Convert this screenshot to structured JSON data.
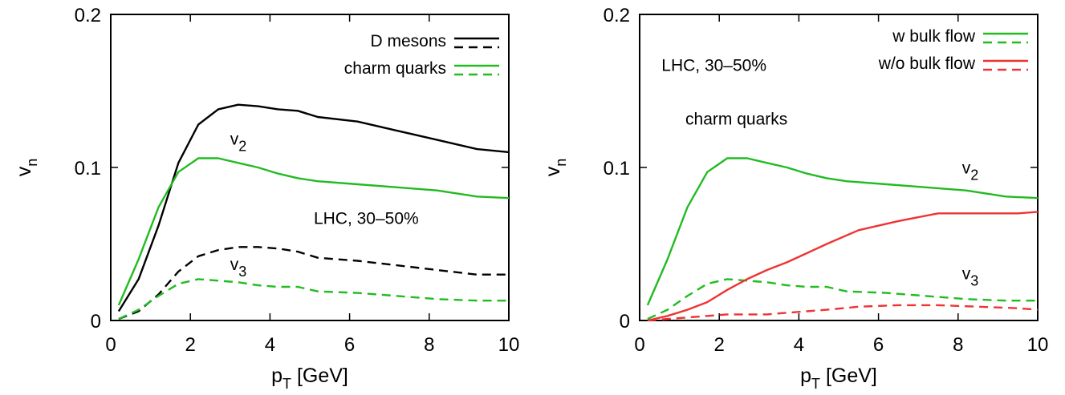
{
  "chart_data": [
    {
      "type": "line",
      "xlim": [
        0,
        10
      ],
      "ylim": [
        0,
        0.2
      ],
      "xticks": [
        0,
        2,
        4,
        6,
        8,
        10
      ],
      "yticks": [
        0,
        0.1,
        0.2
      ],
      "xtick_labels": [
        "0",
        "2",
        "4",
        "6",
        "8",
        "10"
      ],
      "ytick_labels": [
        "0",
        "0.1",
        "0.2"
      ],
      "xlabel": {
        "main": "p",
        "sub": "T",
        "rest": " [GeV]"
      },
      "ylabel": {
        "main": "v",
        "sub": "n"
      },
      "legend_position": "top-right",
      "legend": [
        {
          "label": "D mesons",
          "color": "#000000"
        },
        {
          "label": "charm quarks",
          "color": "#22bb22"
        }
      ],
      "annotations": [
        {
          "main": "v",
          "sub": "2",
          "x": 3.0,
          "y": 0.115
        },
        {
          "main": "LHC, 30–50%",
          "sub": "",
          "x": 5.1,
          "y": 0.063
        },
        {
          "main": "v",
          "sub": "3",
          "x": 3.0,
          "y": 0.033
        }
      ],
      "series": [
        {
          "key": "d-mesons-v2",
          "color": "#000000",
          "dashed": false,
          "x": [
            0.2,
            0.7,
            1.2,
            1.7,
            2.2,
            2.7,
            3.2,
            3.7,
            4.2,
            4.7,
            5.2,
            6.2,
            7.2,
            8.2,
            9.2,
            10.0
          ],
          "y": [
            0.006,
            0.027,
            0.062,
            0.103,
            0.128,
            0.138,
            0.141,
            0.14,
            0.138,
            0.137,
            0.133,
            0.13,
            0.124,
            0.118,
            0.112,
            0.11
          ]
        },
        {
          "key": "d-mesons-v3",
          "color": "#000000",
          "dashed": true,
          "x": [
            0.2,
            0.7,
            1.2,
            1.7,
            2.2,
            2.7,
            3.2,
            3.7,
            4.2,
            4.7,
            5.2,
            6.2,
            7.2,
            8.2,
            9.2,
            10.0
          ],
          "y": [
            0.001,
            0.006,
            0.017,
            0.032,
            0.042,
            0.046,
            0.048,
            0.048,
            0.047,
            0.045,
            0.041,
            0.039,
            0.036,
            0.033,
            0.03,
            0.03
          ]
        },
        {
          "key": "charm-quarks-v2",
          "color": "#22bb22",
          "dashed": false,
          "x": [
            0.2,
            0.7,
            1.2,
            1.7,
            2.2,
            2.7,
            3.2,
            3.7,
            4.2,
            4.7,
            5.2,
            6.2,
            7.2,
            8.2,
            9.2,
            10.0
          ],
          "y": [
            0.01,
            0.04,
            0.074,
            0.097,
            0.106,
            0.106,
            0.103,
            0.1,
            0.096,
            0.093,
            0.091,
            0.089,
            0.087,
            0.085,
            0.081,
            0.08
          ]
        },
        {
          "key": "charm-quarks-v3",
          "color": "#22bb22",
          "dashed": true,
          "x": [
            0.2,
            0.7,
            1.2,
            1.7,
            2.2,
            2.7,
            3.2,
            3.7,
            4.2,
            4.7,
            5.2,
            6.2,
            7.2,
            8.2,
            9.2,
            10.0
          ],
          "y": [
            0.001,
            0.007,
            0.016,
            0.024,
            0.027,
            0.026,
            0.025,
            0.023,
            0.022,
            0.022,
            0.019,
            0.018,
            0.016,
            0.014,
            0.013,
            0.013
          ]
        }
      ]
    },
    {
      "type": "line",
      "xlim": [
        0,
        10
      ],
      "ylim": [
        0,
        0.2
      ],
      "xticks": [
        0,
        2,
        4,
        6,
        8,
        10
      ],
      "yticks": [
        0,
        0.1,
        0.2
      ],
      "xtick_labels": [
        "0",
        "2",
        "4",
        "6",
        "8",
        "10"
      ],
      "ytick_labels": [
        "0",
        "0.1",
        "0.2"
      ],
      "xlabel": {
        "main": "p",
        "sub": "T",
        "rest": " [GeV]"
      },
      "ylabel": {
        "main": "v",
        "sub": "n"
      },
      "legend_position": "top-right",
      "legend": [
        {
          "label": "w bulk flow",
          "color": "#22bb22"
        },
        {
          "label": "w/o bulk flow",
          "color": "#ee3333"
        }
      ],
      "annotations": [
        {
          "main": "LHC, 30–50%",
          "sub": "",
          "x": 0.55,
          "y": 0.163
        },
        {
          "main": "charm quarks",
          "sub": "",
          "x": 1.15,
          "y": 0.128
        },
        {
          "main": "v",
          "sub": "2",
          "x": 8.1,
          "y": 0.096
        },
        {
          "main": "v",
          "sub": "3",
          "x": 8.1,
          "y": 0.027
        }
      ],
      "series": [
        {
          "key": "with-bulk-flow-v2",
          "color": "#22bb22",
          "dashed": false,
          "x": [
            0.2,
            0.7,
            1.2,
            1.7,
            2.2,
            2.7,
            3.2,
            3.7,
            4.2,
            4.7,
            5.2,
            6.2,
            7.2,
            8.2,
            9.2,
            10.0
          ],
          "y": [
            0.01,
            0.04,
            0.074,
            0.097,
            0.106,
            0.106,
            0.103,
            0.1,
            0.096,
            0.093,
            0.091,
            0.089,
            0.087,
            0.085,
            0.081,
            0.08
          ]
        },
        {
          "key": "with-bulk-flow-v3",
          "color": "#22bb22",
          "dashed": true,
          "x": [
            0.2,
            0.7,
            1.2,
            1.7,
            2.2,
            2.7,
            3.2,
            3.7,
            4.2,
            4.7,
            5.2,
            6.2,
            7.2,
            8.2,
            9.2,
            10.0
          ],
          "y": [
            0.001,
            0.007,
            0.016,
            0.024,
            0.027,
            0.026,
            0.025,
            0.023,
            0.022,
            0.022,
            0.019,
            0.018,
            0.016,
            0.014,
            0.013,
            0.013
          ]
        },
        {
          "key": "without-bulk-flow-v2",
          "color": "#ee3333",
          "dashed": false,
          "x": [
            0.2,
            0.7,
            1.2,
            1.7,
            2.2,
            2.7,
            3.2,
            3.7,
            4.2,
            4.7,
            5.5,
            6.5,
            7.5,
            8.5,
            9.5,
            10.0
          ],
          "y": [
            0.0,
            0.003,
            0.007,
            0.012,
            0.02,
            0.027,
            0.033,
            0.038,
            0.044,
            0.05,
            0.059,
            0.065,
            0.07,
            0.07,
            0.07,
            0.071
          ]
        },
        {
          "key": "without-bulk-flow-v3",
          "color": "#ee3333",
          "dashed": true,
          "x": [
            0.2,
            0.7,
            1.2,
            1.7,
            2.2,
            2.7,
            3.2,
            3.7,
            4.2,
            4.7,
            5.5,
            6.5,
            7.5,
            8.5,
            9.5,
            10.0
          ],
          "y": [
            0.0,
            0.001,
            0.002,
            0.003,
            0.004,
            0.004,
            0.004,
            0.005,
            0.006,
            0.007,
            0.009,
            0.01,
            0.01,
            0.009,
            0.008,
            0.007
          ]
        }
      ]
    }
  ]
}
